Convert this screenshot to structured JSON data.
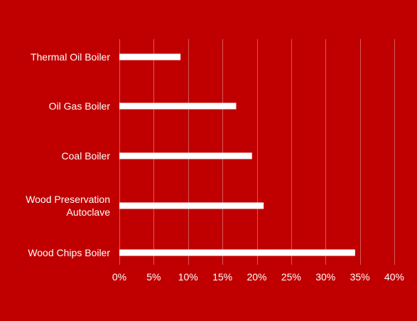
{
  "colors": {
    "background": "#c00000",
    "bar": "#ffffff",
    "gridline": "#d65a5a",
    "text": "#ffffff"
  },
  "chart_data": {
    "type": "bar",
    "orientation": "horizontal",
    "title": "",
    "xlabel": "",
    "ylabel": "",
    "categories": [
      [
        "Thermal Oil Boiler"
      ],
      [
        "Oil Gas Boiler"
      ],
      [
        "Coal Boiler"
      ],
      [
        "Wood Preservation",
        "Autoclave"
      ],
      [
        "Wood Chips Boiler"
      ]
    ],
    "values": [
      8.9,
      17.0,
      19.3,
      21.0,
      34.3
    ],
    "xlim": [
      0,
      40
    ],
    "xticks": [
      0,
      5,
      10,
      15,
      20,
      25,
      30,
      35,
      40
    ],
    "xtick_labels": [
      "0%",
      "5%",
      "10%",
      "15%",
      "20%",
      "25%",
      "30%",
      "35%",
      "40%"
    ],
    "grid": "vertical",
    "legend": "none"
  }
}
